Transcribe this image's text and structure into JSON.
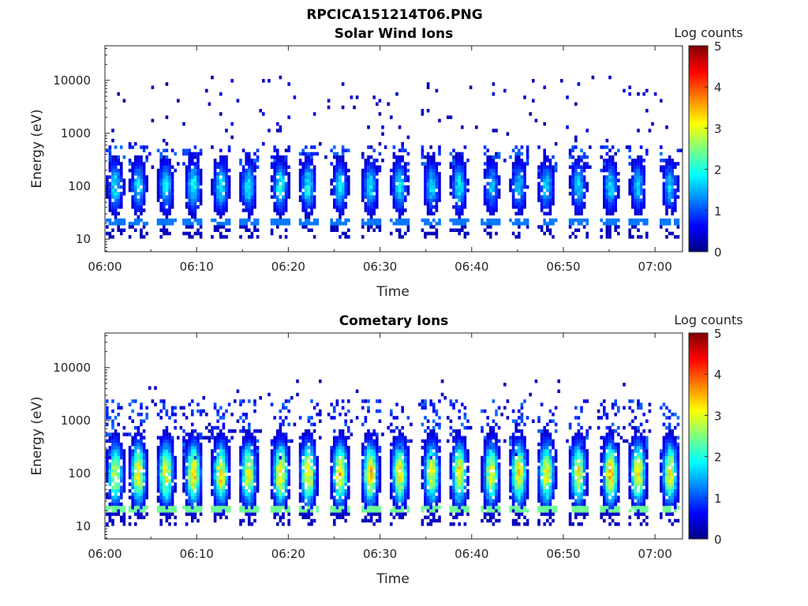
{
  "figure": {
    "title": "RPCICA151214T06.PNG"
  },
  "chart_data": [
    {
      "type": "heatmap",
      "title": "Solar Wind Ions",
      "xlabel": "Time",
      "ylabel": "Energy (eV)",
      "x_ticks": [
        "06:00",
        "06:10",
        "06:20",
        "06:30",
        "06:40",
        "06:50",
        "07:00"
      ],
      "y_ticks": [
        "10",
        "100",
        "1000",
        "10000"
      ],
      "y_scale": "log",
      "ylim": [
        5.8,
        45000
      ],
      "xlim": [
        "06:00",
        "07:03"
      ],
      "colorbar": {
        "label": "Log counts",
        "ticks": [
          "0",
          "1",
          "2",
          "3",
          "4",
          "5"
        ],
        "range": [
          0,
          5
        ],
        "colormap": "jet"
      },
      "grid": false,
      "bursts_minutes": [
        1,
        3.5,
        6.5,
        9.5,
        12.5,
        15.5,
        19,
        22,
        25.5,
        28.8,
        32,
        35.5,
        38.5,
        42,
        45,
        48,
        51.5,
        55,
        58,
        61.5
      ],
      "burst_peak_log_counts": [
        1.9,
        1.9,
        1.9,
        2.0,
        2.0,
        1.9,
        2.1,
        2.0,
        1.9,
        1.9,
        1.9,
        1.8,
        1.9,
        1.7,
        1.7,
        1.8,
        1.8,
        1.8,
        1.7,
        1.7
      ]
    },
    {
      "type": "heatmap",
      "title": "Cometary Ions",
      "xlabel": "Time",
      "ylabel": "Energy (eV)",
      "x_ticks": [
        "06:00",
        "06:10",
        "06:20",
        "06:30",
        "06:40",
        "06:50",
        "07:00"
      ],
      "y_ticks": [
        "10",
        "100",
        "1000",
        "10000"
      ],
      "y_scale": "log",
      "ylim": [
        5.8,
        45000
      ],
      "xlim": [
        "06:00",
        "07:03"
      ],
      "colorbar": {
        "label": "Log counts",
        "ticks": [
          "0",
          "1",
          "2",
          "3",
          "4",
          "5"
        ],
        "range": [
          0,
          5
        ],
        "colormap": "jet"
      },
      "grid": false,
      "bursts_minutes": [
        1,
        3.5,
        6.5,
        9.5,
        12.5,
        15.5,
        19,
        22,
        25.5,
        28.8,
        32,
        35.5,
        38.5,
        42,
        45,
        48,
        51.5,
        55,
        58,
        61.5
      ],
      "burst_peak_log_counts": [
        3.2,
        3.4,
        3.3,
        3.6,
        3.4,
        3.3,
        3.6,
        3.6,
        3.5,
        3.5,
        3.4,
        3.2,
        3.3,
        3.3,
        3.5,
        3.4,
        3.3,
        3.6,
        3.5,
        3.3
      ]
    }
  ]
}
